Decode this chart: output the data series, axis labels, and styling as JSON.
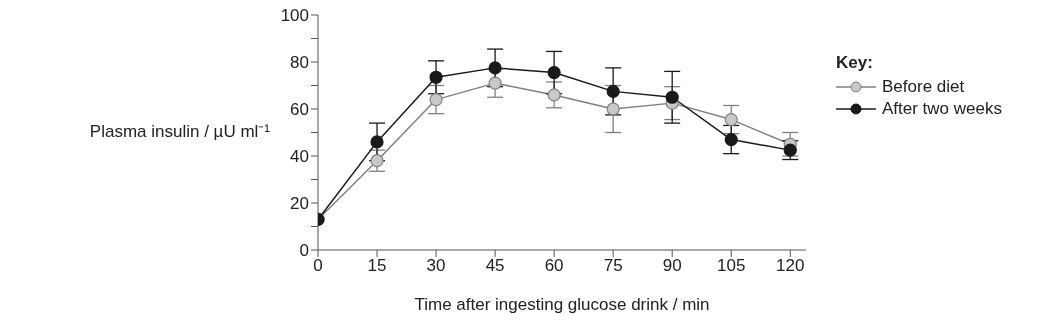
{
  "chart_data": {
    "type": "line",
    "xlabel": "Time after ingesting glucose drink / min",
    "ylabel": "Plasma insulin / µU ml⁻¹",
    "legend_title": "Key:",
    "legend": "top right",
    "marker": "circle",
    "line_style": "solid",
    "x": [
      0,
      15,
      30,
      45,
      60,
      75,
      90,
      105,
      120
    ],
    "series": [
      {
        "name": "Before diet",
        "color": "#808080",
        "values": [
          13,
          38,
          64,
          71,
          66,
          60,
          62.5,
          55.5,
          45
        ],
        "errors": [
          null,
          4.5,
          6,
          6,
          5.5,
          10,
          7,
          6,
          5
        ]
      },
      {
        "name": "After two weeks",
        "color": "#1a1a1a",
        "values": [
          13,
          46,
          73.5,
          77.5,
          75.5,
          67.5,
          65,
          47,
          42.5
        ],
        "errors": [
          null,
          8,
          7,
          8,
          9,
          10,
          11,
          6,
          4
        ]
      }
    ],
    "xlim": [
      0,
      124
    ],
    "xticks": [
      0,
      15,
      30,
      45,
      60,
      75,
      90,
      105,
      120
    ],
    "ylim": [
      0,
      100
    ],
    "yticks": [
      0,
      {
        "value": 10,
        "label": null
      },
      20,
      {
        "value": 30,
        "label": null
      },
      40,
      {
        "value": 50,
        "label": null
      },
      60,
      {
        "value": 70,
        "label": null
      },
      80,
      {
        "value": 90,
        "label": null
      },
      100
    ],
    "grid": false
  }
}
